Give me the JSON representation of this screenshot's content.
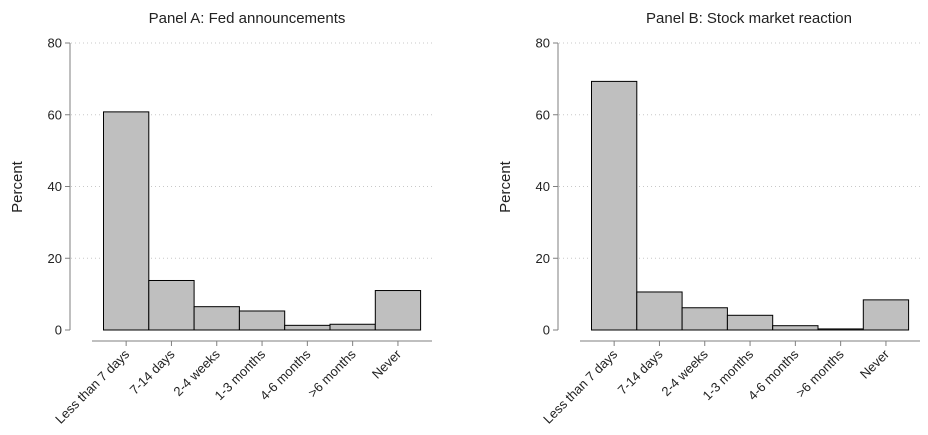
{
  "chart_data": [
    {
      "type": "bar",
      "title": "Panel A: Fed announcements",
      "ylabel": "Percent",
      "xlabel": "",
      "categories": [
        "Less than 7 days",
        "7-14 days",
        "2-4 weeks",
        "1-3 months",
        "4-6 months",
        ">6 months",
        "Never"
      ],
      "values": [
        60.8,
        13.8,
        6.5,
        5.3,
        1.3,
        1.6,
        11.0
      ],
      "ylim": [
        0,
        80
      ],
      "yticks": [
        0,
        20,
        40,
        60,
        80
      ],
      "grid": true
    },
    {
      "type": "bar",
      "title": "Panel B: Stock market reaction",
      "ylabel": "Percent",
      "xlabel": "",
      "categories": [
        "Less than 7 days",
        "7-14 days",
        "2-4 weeks",
        "1-3 months",
        "4-6 months",
        ">6 months",
        "Never"
      ],
      "values": [
        69.3,
        10.6,
        6.2,
        4.1,
        1.2,
        0.3,
        8.4
      ],
      "ylim": [
        0,
        80
      ],
      "yticks": [
        0,
        20,
        40,
        60,
        80
      ],
      "grid": true
    }
  ]
}
